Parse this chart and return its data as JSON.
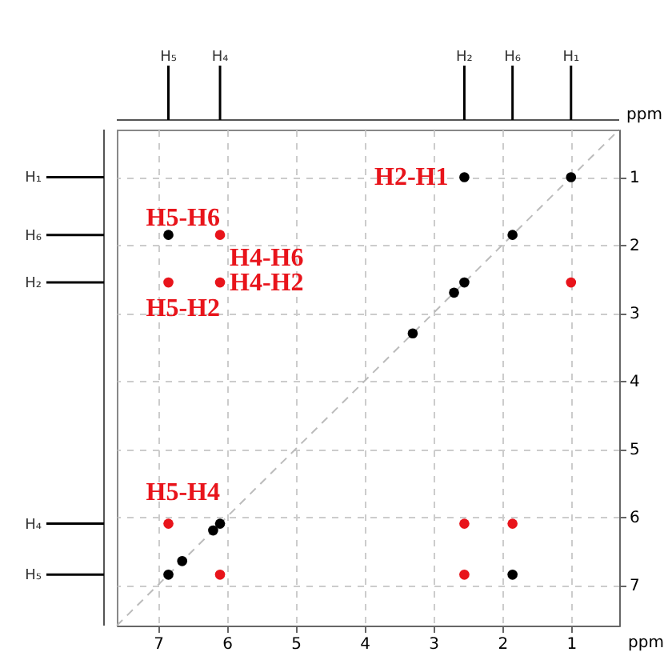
{
  "chart_data": {
    "type": "scatter",
    "ylabel": "ppm",
    "xlabel": "ppm",
    "xlim": [
      7.6,
      0.3
    ],
    "ylim": [
      7.6,
      0.3
    ],
    "xticks": [
      7,
      6,
      5,
      4,
      3,
      2,
      1
    ],
    "yticks": [
      1,
      2,
      3,
      4,
      5,
      6,
      7
    ],
    "grid": true,
    "marker": "circle",
    "series": [
      {
        "type": "line",
        "color": "#bbbbbb",
        "line_style": "dashed",
        "marker": "none",
        "x": [
          7.6,
          0.3
        ],
        "values": [
          7.6,
          0.3
        ]
      },
      {
        "color": "#000000",
        "x": [
          1.0,
          1.85,
          2.55,
          2.7,
          3.3,
          6.1,
          6.2,
          6.65,
          6.85,
          2.55,
          6.85,
          1.85
        ],
        "values": [
          1.0,
          1.85,
          2.55,
          2.7,
          3.3,
          6.1,
          6.2,
          6.65,
          6.85,
          1.0,
          1.85,
          6.85
        ]
      },
      {
        "color": "#e8141b",
        "x": [
          1.0,
          6.85,
          6.1,
          6.1,
          6.85,
          6.1,
          2.55,
          1.85,
          2.55
        ],
        "values": [
          2.55,
          2.55,
          2.55,
          1.85,
          6.1,
          6.85,
          6.1,
          6.1,
          6.85
        ]
      }
    ],
    "annotations": [
      {
        "text": "H2-H1",
        "x": 2.55,
        "y": 1.0
      },
      {
        "text": "H5-H6",
        "x": 6.85,
        "y": 1.85
      },
      {
        "text": "H4-H6",
        "x": 6.1,
        "y": 1.85
      },
      {
        "text": "H4-H2",
        "x": 6.1,
        "y": 2.55
      },
      {
        "text": "H5-H2",
        "x": 6.85,
        "y": 2.55
      },
      {
        "text": "H5-H4",
        "x": 6.85,
        "y": 6.1
      },
      {
        "text": "H₅",
        "x": 6.85
      },
      {
        "text": "H₄",
        "x": 6.1
      },
      {
        "text": "H₂",
        "x": 2.55
      },
      {
        "text": "H₆",
        "x": 1.85
      },
      {
        "text": "H₁",
        "x": 1.0
      },
      "H₁",
      "H₆",
      "H₂",
      "H₄",
      "H₅"
    ]
  }
}
